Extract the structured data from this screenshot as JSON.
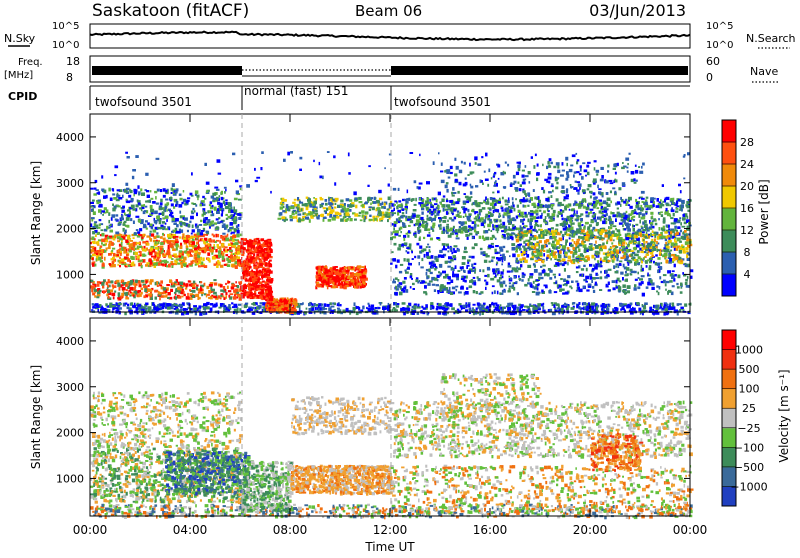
{
  "header": {
    "station": "Saskatoon (fitACF)",
    "beam": "Beam 06",
    "date": "03/Jun/2013"
  },
  "aux": {
    "nsky_label": "N.Sky",
    "nsky_ticks": [
      "10^5",
      "10^0"
    ],
    "nsearch_label": "N.Search",
    "nsearch_ticks": [
      "10^5",
      "10^0"
    ],
    "freq_label_1": "Freq.",
    "freq_label_2": "[MHz]",
    "freq_ticks": [
      "18",
      "8"
    ],
    "nave_label": "Nave",
    "nave_ticks": [
      "60",
      "0"
    ],
    "cpid_label": "CPID",
    "cpid_segments": [
      {
        "label": "twofsound 3501",
        "start": 0,
        "end": 6
      },
      {
        "label": "normal (fast) 151",
        "start": 6,
        "end": 12
      },
      {
        "label": "twofsound 3501",
        "start": 12,
        "end": 24
      }
    ]
  },
  "chart_data": [
    {
      "type": "heatmap",
      "quantity": "Power",
      "ylabel": "Slant Range [km]",
      "ylim": [
        180,
        4500
      ],
      "yticks": [
        "1000",
        "2000",
        "3000",
        "4000"
      ],
      "xlim_hours": [
        0,
        24
      ],
      "colorbar_label": "Power [dB]",
      "colorbar_ticks": [
        "4",
        "8",
        "12",
        "16",
        "20",
        "24",
        "28"
      ],
      "colorbar_colors": [
        "#0000ff",
        "#2b5fb0",
        "#3d8c5a",
        "#62b43c",
        "#f0c800",
        "#f08a0a",
        "#ff5010",
        "#ff0000"
      ]
    },
    {
      "type": "heatmap",
      "quantity": "Velocity",
      "ylabel": "Slant Range [km]",
      "ylim": [
        180,
        4500
      ],
      "yticks": [
        "1000",
        "2000",
        "3000",
        "4000"
      ],
      "xlim_hours": [
        0,
        24
      ],
      "xlabel": "Time UT",
      "xticks": [
        "00:00",
        "04:00",
        "08:00",
        "12:00",
        "16:00",
        "20:00",
        "00:00"
      ],
      "colorbar_label": "Velocity [m s⁻¹]",
      "colorbar_ticks": [
        "1000",
        "500",
        "100",
        "25",
        "−25",
        "−100",
        "−500",
        "−1000"
      ],
      "colorbar_colors": [
        "#2040c0",
        "#3a6a9a",
        "#3d8c5a",
        "#62c03c",
        "#c0c0c0",
        "#f0a030",
        "#f07010",
        "#f03010",
        "#ff0000"
      ]
    }
  ]
}
